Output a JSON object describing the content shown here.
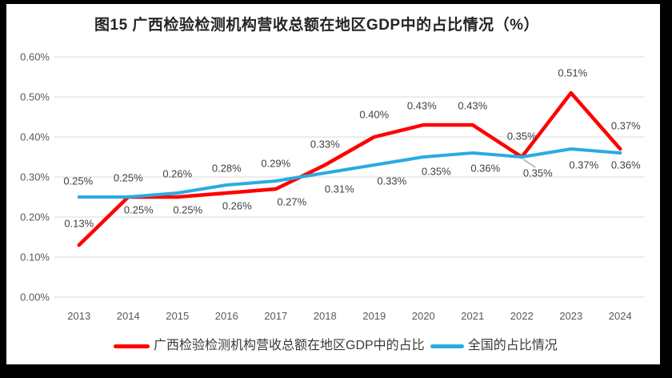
{
  "title": "图15 广西检验检测机构营收总额在地区GDP中的占比情况（%）",
  "colors": {
    "background": "#FFFFFF",
    "frame": "#000000",
    "gridline": "#D9D9D9",
    "axis_text": "#595959",
    "label_text": "#404040",
    "guangxi_red": "#FF0000",
    "national_blue": "#29ABE2",
    "leader": "#A6A6A6"
  },
  "chart_data": {
    "type": "line",
    "title": "图15 广西检验检测机构营收总额在地区GDP中的占比情况（%）",
    "categories": [
      "2013",
      "2014",
      "2015",
      "2016",
      "2017",
      "2018",
      "2019",
      "2020",
      "2021",
      "2022",
      "2023",
      "2024"
    ],
    "xlabel": "",
    "ylabel": "",
    "ylim": [
      0,
      0.6
    ],
    "unit": "percent",
    "grid": true,
    "legend_position": "bottom",
    "ytick_labels": [
      "0.00%",
      "0.10%",
      "0.20%",
      "0.30%",
      "0.40%",
      "0.50%",
      "0.60%"
    ],
    "series": [
      {
        "name": "广西检验检测机构营收总额在地区GDP中的占比",
        "slug": "guangxi-gdp-share",
        "color": "#FF0000",
        "values": [
          0.13,
          0.25,
          0.25,
          0.26,
          0.27,
          0.33,
          0.4,
          0.43,
          0.43,
          0.35,
          0.51,
          0.37
        ],
        "labels": [
          "0.13%",
          "0.25%",
          "0.25%",
          "0.26%",
          "0.27%",
          "0.33%",
          "0.40%",
          "0.43%",
          "0.43%",
          "0.35%",
          "0.51%",
          "0.37%"
        ],
        "label_offsets": [
          [
            0,
            -27
          ],
          [
            13,
            16
          ],
          [
            13,
            16
          ],
          [
            13,
            16
          ],
          [
            20,
            16
          ],
          [
            0,
            -26
          ],
          [
            0,
            -28
          ],
          [
            -2,
            -24
          ],
          [
            0,
            -24
          ],
          [
            20,
            20
          ],
          [
            2,
            -25
          ],
          [
            7,
            -29
          ]
        ]
      },
      {
        "name": "全国的占比情况",
        "slug": "national-share",
        "color": "#29ABE2",
        "values": [
          0.25,
          0.25,
          0.26,
          0.28,
          0.29,
          0.31,
          0.33,
          0.35,
          0.36,
          0.35,
          0.37,
          0.36
        ],
        "labels": [
          "0.25%",
          "0.25%",
          "0.26%",
          "0.28%",
          "0.29%",
          "0.31%",
          "0.33%",
          "0.35%",
          "0.36%",
          "0.35%",
          "0.37%",
          "0.36%"
        ],
        "label_offsets": [
          [
            -1,
            -20
          ],
          [
            0,
            -24
          ],
          [
            0,
            -24
          ],
          [
            0,
            -21
          ],
          [
            0,
            -22
          ],
          [
            18,
            20
          ],
          [
            22,
            20
          ],
          [
            16,
            18
          ],
          [
            16,
            19
          ],
          [
            0,
            -26
          ],
          [
            16,
            20
          ],
          [
            7,
            15
          ]
        ]
      }
    ],
    "leader_line": {
      "series_index": 0,
      "point_index": 9,
      "from_offset": [
        2,
        3
      ],
      "to_offset": [
        17,
        13
      ],
      "color": "#A6A6A6"
    }
  },
  "legend": {
    "items": [
      {
        "label": "广西检验检测机构营收总额在地区GDP中的占比",
        "color": "#FF0000"
      },
      {
        "label": "全国的占比情况",
        "color": "#29ABE2"
      }
    ]
  }
}
